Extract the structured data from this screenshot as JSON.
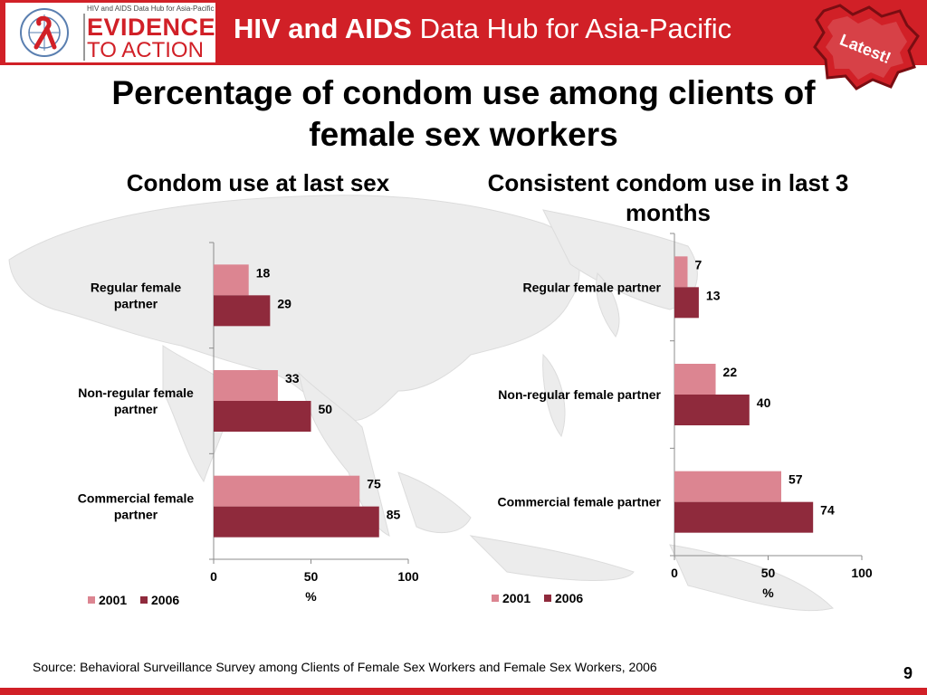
{
  "header": {
    "logo_tagline": "HIV and AIDS Data Hub for Asia-Pacific",
    "logo_line1": "EVIDENCE",
    "logo_line2": "TO ACTION",
    "hub_title_bold": "HIV and AIDS",
    "hub_title_rest": "Data Hub for Asia-Pacific",
    "badge_text": "Latest!"
  },
  "main_title": "Percentage of condom use among clients of female sex workers",
  "page_number": "9",
  "source": "Source:  Behavioral Surveillance Survey among Clients of  Female  Sex Workers and Female  Sex  Workers, 2006",
  "colors": {
    "brand_red": "#d12027",
    "series_2001": "#dc8591",
    "series_2006": "#8f2a3c"
  },
  "chart_data": [
    {
      "type": "bar",
      "orientation": "horizontal",
      "title": "Condom use at last sex",
      "categories": [
        "Regular female partner",
        "Non-regular female partner",
        "Commercial female partner"
      ],
      "category_labels_wrapped": [
        [
          "Regular female",
          "partner"
        ],
        [
          "Non-regular female",
          "partner"
        ],
        [
          "Commercial female",
          "partner"
        ]
      ],
      "series": [
        {
          "name": "2001",
          "values": [
            18,
            33,
            75
          ]
        },
        {
          "name": "2006",
          "values": [
            29,
            50,
            85
          ]
        }
      ],
      "xlim": [
        0,
        100
      ],
      "xticks": [
        0,
        50,
        100
      ],
      "xlabel": "%",
      "legend": "bottom-left"
    },
    {
      "type": "bar",
      "orientation": "horizontal",
      "title": "Consistent condom use in last 3 months",
      "categories": [
        "Regular female partner",
        "Non-regular female partner",
        "Commercial female partner"
      ],
      "category_labels_wrapped": [
        [
          "Regular female partner"
        ],
        [
          "Non-regular female partner"
        ],
        [
          "Commercial female partner"
        ]
      ],
      "series": [
        {
          "name": "2001",
          "values": [
            7,
            22,
            57
          ]
        },
        {
          "name": "2006",
          "values": [
            13,
            40,
            74
          ]
        }
      ],
      "xlim": [
        0,
        100
      ],
      "xticks": [
        0,
        50,
        100
      ],
      "xlabel": "%",
      "legend": "bottom-left"
    }
  ]
}
